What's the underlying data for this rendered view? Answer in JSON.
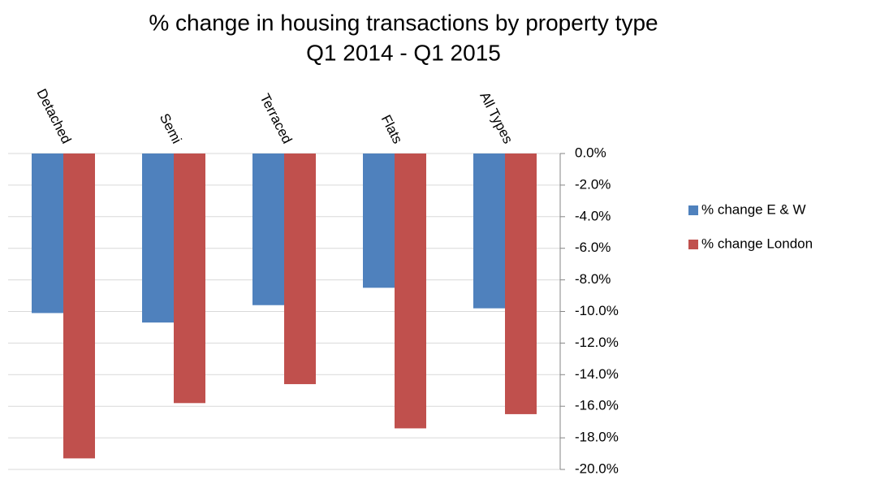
{
  "chart_data": {
    "type": "bar",
    "title": "% change in housing transactions by property type",
    "subtitle": "Q1 2014 - Q1 2015",
    "categories": [
      "Detached",
      "Semi",
      "Terraced",
      "Flats",
      "All Types"
    ],
    "series": [
      {
        "name": "% change E & W",
        "color": "#4f81bd",
        "values": [
          -10.1,
          -10.7,
          -9.6,
          -8.5,
          -9.8
        ]
      },
      {
        "name": "% change London",
        "color": "#c0504d",
        "values": [
          -19.3,
          -15.8,
          -14.6,
          -17.4,
          -16.5
        ]
      }
    ],
    "ylim": [
      -20,
      0
    ],
    "yticks": [
      {
        "value": 0,
        "label": "0.0%"
      },
      {
        "value": -2,
        "label": "-2.0%"
      },
      {
        "value": -4,
        "label": "-4.0%"
      },
      {
        "value": -6,
        "label": "-6.0%"
      },
      {
        "value": -8,
        "label": "-8.0%"
      },
      {
        "value": -10,
        "label": "-10.0%"
      },
      {
        "value": -12,
        "label": "-12.0%"
      },
      {
        "value": -14,
        "label": "-14.0%"
      },
      {
        "value": -16,
        "label": "-16.0%"
      },
      {
        "value": -18,
        "label": "-18.0%"
      },
      {
        "value": -20,
        "label": "-20.0%"
      }
    ],
    "grid": true,
    "legend": "right"
  }
}
